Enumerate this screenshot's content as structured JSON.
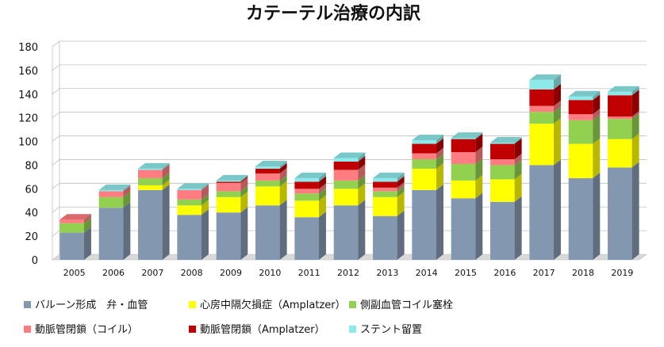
{
  "chart_data": {
    "type": "bar",
    "stacked": true,
    "title": "カテーテル治療の内訳",
    "xlabel": "",
    "ylabel": "",
    "ylim": [
      0,
      180
    ],
    "yticks": [
      0,
      20,
      40,
      60,
      80,
      100,
      120,
      140,
      160,
      180
    ],
    "grid": true,
    "legend_position": "bottom",
    "categories": [
      "2005",
      "2006",
      "2007",
      "2008",
      "2009",
      "2010",
      "2011",
      "2012",
      "2013",
      "2014",
      "2015",
      "2016",
      "2017",
      "2018",
      "2019"
    ],
    "series": [
      {
        "name": "バルーン形成　弁・血管",
        "color": "#8497B0",
        "values": [
          23,
          44,
          59,
          38,
          40,
          46,
          36,
          46,
          37,
          59,
          52,
          49,
          80,
          69,
          78
        ]
      },
      {
        "name": "心房中隔欠損症（Amplatzer）",
        "color": "#FFFF00",
        "values": [
          0,
          0,
          4,
          8,
          13,
          16,
          14,
          14,
          16,
          18,
          15,
          19,
          35,
          29,
          24
        ]
      },
      {
        "name": "側副血管コイル塞栓",
        "color": "#92D050",
        "values": [
          8,
          9,
          6,
          5,
          5,
          5,
          6,
          7,
          5,
          8,
          14,
          12,
          10,
          20,
          17
        ]
      },
      {
        "name": "動脈管閉鎖（コイル）",
        "color": "#FF7C80",
        "values": [
          3,
          5,
          7,
          8,
          7,
          6,
          4,
          9,
          3,
          5,
          10,
          5,
          5,
          5,
          2
        ]
      },
      {
        "name": "動脈管閉鎖（Amplatzer）",
        "color": "#C00000",
        "values": [
          0,
          0,
          0,
          0,
          1,
          4,
          6,
          7,
          5,
          8,
          11,
          13,
          14,
          12,
          18
        ]
      },
      {
        "name": "ステント留置",
        "color": "#8EEAEA",
        "values": [
          0,
          1,
          1,
          1,
          1,
          2,
          3,
          3,
          3,
          3,
          1,
          1,
          8,
          3,
          3
        ]
      }
    ]
  }
}
